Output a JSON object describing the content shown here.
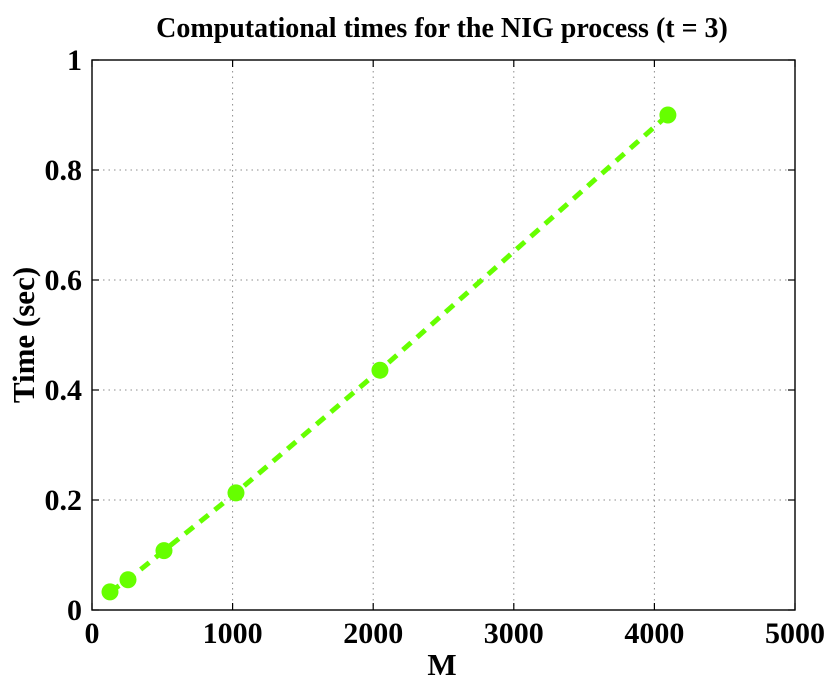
{
  "chart_data": {
    "type": "line",
    "title": "Computational times for the NIG process (t = 3)",
    "xlabel": "M",
    "ylabel": "Time (sec)",
    "xlim": [
      0,
      5000
    ],
    "ylim": [
      0,
      1
    ],
    "xticks": [
      0,
      1000,
      2000,
      3000,
      4000,
      5000
    ],
    "yticks": [
      0,
      0.2,
      0.4,
      0.6,
      0.8,
      1
    ],
    "xtick_labels": [
      "0",
      "1000",
      "2000",
      "3000",
      "4000",
      "5000"
    ],
    "ytick_labels": [
      "0",
      "0.2",
      "0.4",
      "0.6",
      "0.8",
      "1"
    ],
    "grid": true,
    "legend": "none",
    "series": [
      {
        "x": [
          128,
          256,
          512,
          1024,
          2048,
          4096
        ],
        "y": [
          0.033,
          0.055,
          0.108,
          0.213,
          0.436,
          0.9
        ],
        "color": "#66ff00",
        "line_style": "dashed",
        "marker": "filled-circle"
      }
    ]
  }
}
